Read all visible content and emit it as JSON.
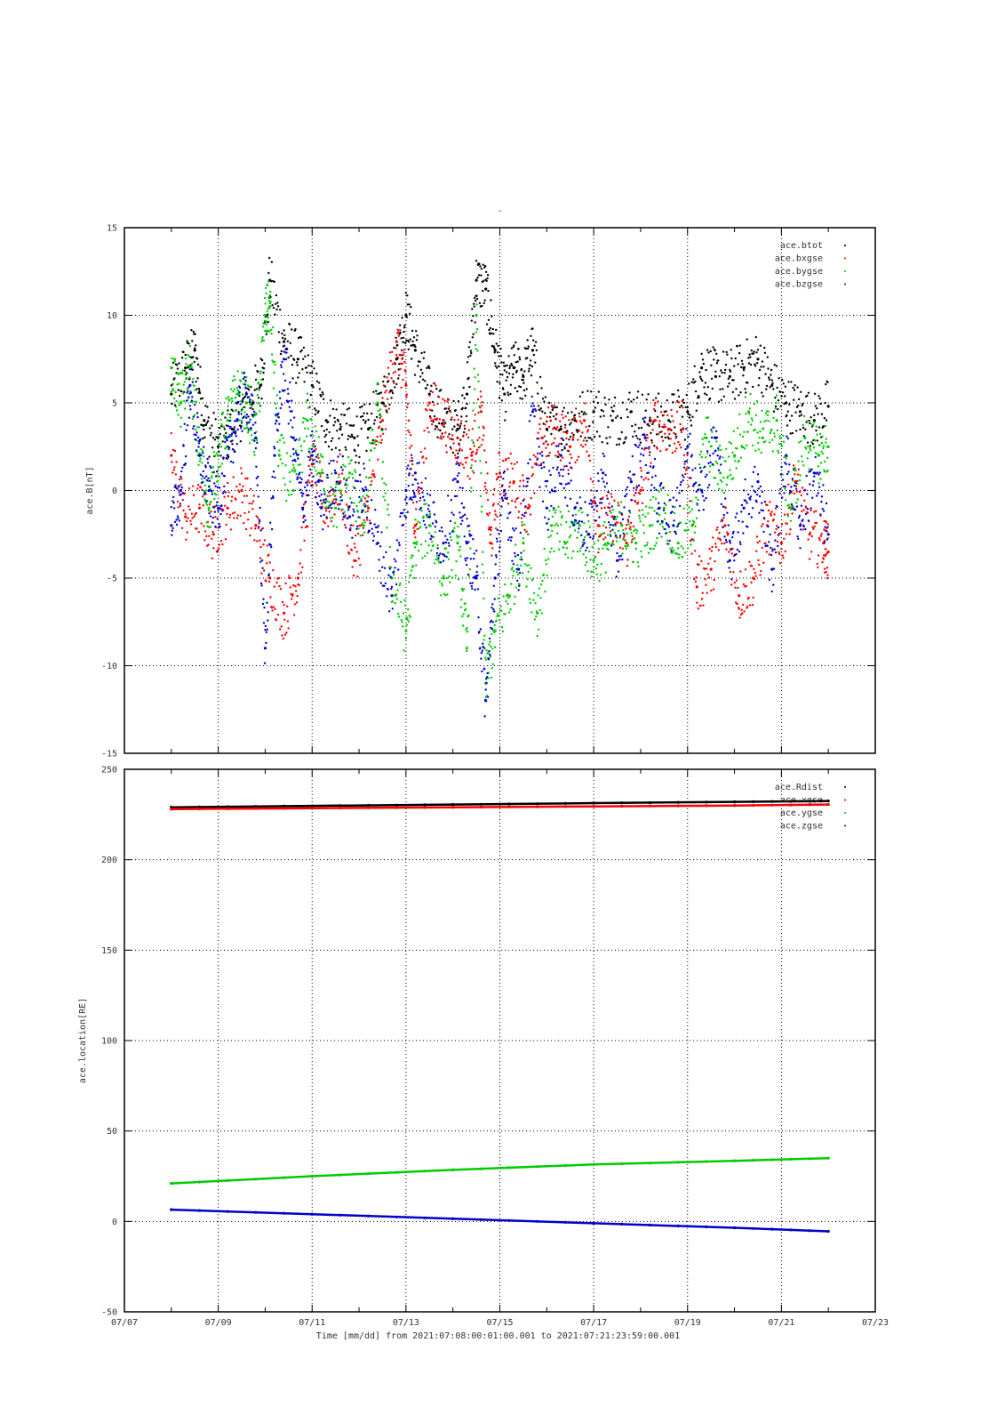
{
  "chart_data": [
    {
      "type": "scatter",
      "title": "",
      "ylabel": "ace.B[nT]",
      "xlim": [
        "07/07",
        "07/23"
      ],
      "ylim": [
        -15,
        15
      ],
      "yticks": [
        15,
        10,
        5,
        0,
        -5,
        -10,
        -15
      ],
      "xticks_major": [
        "07/07",
        "07/09",
        "07/11",
        "07/13",
        "07/15",
        "07/17",
        "07/19",
        "07/21",
        "07/23"
      ],
      "grid": true,
      "legend": "top-right",
      "series": [
        {
          "name": "ace.btot",
          "color": "#000000",
          "x": [
            8.0,
            8.3,
            8.5,
            8.7,
            9.0,
            9.3,
            9.6,
            9.9,
            10.1,
            10.4,
            10.7,
            11.0,
            11.3,
            11.6,
            11.9,
            12.2,
            12.5,
            12.8,
            13.0,
            13.2,
            13.5,
            13.8,
            14.1,
            14.3,
            14.5,
            14.7,
            14.9,
            15.1,
            15.3,
            15.5,
            15.7,
            16.0,
            16.3,
            16.6,
            17.0,
            17.4,
            17.8,
            18.2,
            18.6,
            19.0,
            19.3,
            19.6,
            19.9,
            20.2,
            20.5,
            20.8,
            21.1,
            21.4,
            21.7,
            22.0
          ],
          "y": [
            5.5,
            7.0,
            8.0,
            4.0,
            2.5,
            3.5,
            5.0,
            6.0,
            12.0,
            8.5,
            7.5,
            6.0,
            4.0,
            3.5,
            3.0,
            3.5,
            5.0,
            7.5,
            10.0,
            8.0,
            5.5,
            4.0,
            3.5,
            5.5,
            12.0,
            11.5,
            8.0,
            5.5,
            7.0,
            6.5,
            8.0,
            3.5,
            3.5,
            4.0,
            4.5,
            4.0,
            4.5,
            4.0,
            4.0,
            4.5,
            7.0,
            6.5,
            6.5,
            7.0,
            7.5,
            6.0,
            5.0,
            4.5,
            4.0,
            4.8
          ]
        },
        {
          "name": "ace.bxgse",
          "color": "#ff0000",
          "x": [
            8.0,
            8.3,
            8.6,
            8.9,
            9.2,
            9.5,
            9.8,
            10.1,
            10.4,
            10.7,
            11.0,
            11.3,
            11.6,
            11.9,
            12.2,
            12.5,
            12.8,
            13.0,
            13.2,
            13.5,
            13.8,
            14.1,
            14.4,
            14.6,
            14.8,
            15.0,
            15.3,
            15.6,
            15.9,
            16.2,
            16.5,
            16.8,
            17.1,
            17.4,
            17.7,
            18.0,
            18.3,
            18.6,
            18.9,
            19.2,
            19.5,
            19.8,
            20.1,
            20.4,
            20.7,
            21.0,
            21.3,
            21.6,
            21.9,
            22.0
          ],
          "y": [
            2.0,
            -1.5,
            -1.0,
            -2.5,
            -1.0,
            0.0,
            -2.0,
            -5.0,
            -7.0,
            -5.0,
            1.5,
            -1.0,
            0.5,
            -4.0,
            -1.0,
            4.0,
            8.5,
            6.0,
            -2.0,
            5.0,
            4.0,
            3.0,
            2.0,
            4.5,
            -3.0,
            1.0,
            0.5,
            -1.0,
            3.0,
            3.5,
            2.5,
            4.0,
            -2.0,
            -1.5,
            -3.0,
            0.0,
            4.0,
            3.5,
            3.5,
            -5.5,
            -4.5,
            -2.0,
            -6.0,
            -5.0,
            -2.0,
            -3.0,
            0.5,
            -2.5,
            -3.0,
            -3.5
          ]
        },
        {
          "name": "ace.bygse",
          "color": "#00cc00",
          "x": [
            8.0,
            8.2,
            8.4,
            8.6,
            8.8,
            9.0,
            9.2,
            9.4,
            9.6,
            9.8,
            10.0,
            10.1,
            10.3,
            10.6,
            10.9,
            11.2,
            11.5,
            11.8,
            12.1,
            12.4,
            12.7,
            13.0,
            13.2,
            13.5,
            13.8,
            14.1,
            14.3,
            14.5,
            14.7,
            14.9,
            15.2,
            15.5,
            15.8,
            16.1,
            16.4,
            16.7,
            17.0,
            17.3,
            17.6,
            17.9,
            18.2,
            18.5,
            18.8,
            19.1,
            19.4,
            19.7,
            20.0,
            20.3,
            20.6,
            20.9,
            21.2,
            21.5,
            21.8,
            22.0
          ],
          "y": [
            7.0,
            5.0,
            7.0,
            2.0,
            -1.0,
            2.0,
            4.0,
            5.5,
            5.0,
            3.0,
            10.0,
            10.5,
            2.0,
            0.0,
            4.0,
            1.0,
            -1.0,
            1.0,
            -2.0,
            5.0,
            -5.0,
            -8.0,
            -3.0,
            -2.0,
            -5.0,
            -3.0,
            -9.0,
            10.0,
            -11.0,
            -8.0,
            -6.0,
            -3.0,
            -7.0,
            -2.0,
            -3.0,
            -2.0,
            -4.0,
            -3.0,
            -2.0,
            -3.0,
            -2.0,
            -1.0,
            -3.0,
            -2.0,
            3.0,
            1.0,
            2.0,
            4.5,
            3.0,
            4.0,
            -1.0,
            3.0,
            2.0,
            2.5
          ]
        },
        {
          "name": "ace.bzgse",
          "color": "#0000cc",
          "x": [
            8.0,
            8.2,
            8.4,
            8.6,
            8.8,
            9.0,
            9.2,
            9.4,
            9.6,
            9.8,
            10.0,
            10.2,
            10.4,
            10.6,
            10.8,
            11.0,
            11.2,
            11.5,
            11.8,
            12.1,
            12.4,
            12.7,
            13.0,
            13.2,
            13.5,
            13.8,
            14.1,
            14.3,
            14.5,
            14.7,
            14.9,
            15.1,
            15.4,
            15.7,
            16.0,
            16.3,
            16.6,
            16.9,
            17.2,
            17.5,
            17.8,
            18.1,
            18.4,
            18.7,
            19.0,
            19.3,
            19.6,
            19.9,
            20.2,
            20.5,
            20.8,
            21.1,
            21.4,
            21.7,
            22.0
          ],
          "y": [
            -2.0,
            0.0,
            6.0,
            2.0,
            0.0,
            -1.0,
            2.0,
            4.0,
            5.5,
            3.0,
            -9.0,
            2.0,
            7.5,
            3.0,
            -1.0,
            2.0,
            -1.0,
            1.0,
            -1.5,
            0.0,
            -3.0,
            -6.0,
            0.0,
            1.0,
            -1.5,
            -3.0,
            0.5,
            -3.0,
            -5.0,
            -12.0,
            -5.0,
            0.0,
            -4.5,
            4.5,
            -1.0,
            2.0,
            -1.0,
            -2.5,
            1.0,
            -4.0,
            0.5,
            3.0,
            -1.0,
            -2.0,
            2.5,
            0.0,
            3.0,
            -4.0,
            -1.0,
            0.5,
            -4.5,
            2.0,
            -2.0,
            1.0,
            -2.5
          ]
        }
      ]
    },
    {
      "type": "scatter",
      "title": "",
      "ylabel": "ace.location[RE]",
      "xlabel": "Time [mm/dd]  from 2021:07:08:00:01:00.001  to  2021:07:21:23:59:00.001",
      "xlim": [
        "07/07",
        "07/23"
      ],
      "ylim": [
        -50,
        250
      ],
      "yticks": [
        250,
        200,
        150,
        100,
        50,
        0,
        -50
      ],
      "xticks_major": [
        "07/07",
        "07/09",
        "07/11",
        "07/13",
        "07/15",
        "07/17",
        "07/19",
        "07/21",
        "07/23"
      ],
      "grid": true,
      "legend": "top-right",
      "series": [
        {
          "name": "ace.Rdist",
          "color": "#000000",
          "x": [
            8.0,
            11.0,
            14.0,
            17.0,
            20.0,
            22.0
          ],
          "y": [
            229.0,
            229.8,
            230.5,
            231.3,
            232.0,
            232.5
          ]
        },
        {
          "name": "ace.xgse",
          "color": "#ff0000",
          "x": [
            8.0,
            11.0,
            14.0,
            17.0,
            20.0,
            22.0
          ],
          "y": [
            228.0,
            228.5,
            229.0,
            229.5,
            230.0,
            230.5
          ]
        },
        {
          "name": "ace.ygse",
          "color": "#00cc00",
          "x": [
            8.0,
            11.0,
            14.0,
            17.0,
            20.0,
            22.0
          ],
          "y": [
            21.0,
            25.0,
            28.5,
            31.5,
            33.5,
            35.0
          ]
        },
        {
          "name": "ace.zgse",
          "color": "#0000cc",
          "x": [
            8.0,
            11.0,
            14.0,
            17.0,
            20.0,
            22.0
          ],
          "y": [
            6.5,
            4.0,
            1.5,
            -1.0,
            -3.5,
            -5.5
          ]
        }
      ]
    }
  ]
}
